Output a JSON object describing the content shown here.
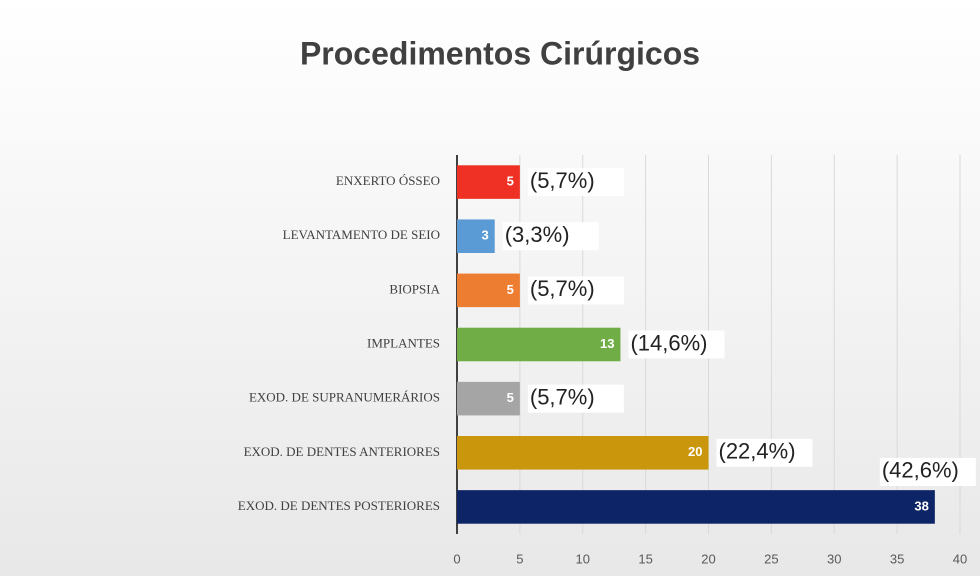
{
  "chart_data": {
    "type": "bar",
    "orientation": "horizontal",
    "title": "Procedimentos Cirúrgicos",
    "categories": [
      "ENXERTO ÓSSEO",
      "LEVANTAMENTO DE SEIO",
      "BIOPSIA",
      "IMPLANTES",
      "EXOD. DE SUPRANUMERÁRIOS",
      "EXOD. DE DENTES ANTERIORES",
      "EXOD. DE DENTES POSTERIORES"
    ],
    "values": [
      5,
      3,
      5,
      13,
      5,
      20,
      38
    ],
    "percent_labels": [
      "(5,7%)",
      "(3,3%)",
      "(5,7%)",
      "(14,6%)",
      "(5,7%)",
      "(22,4%)",
      "(42,6%)"
    ],
    "colors": [
      "#ee3124",
      "#5b9bd5",
      "#ed7d31",
      "#70ad47",
      "#a5a5a5",
      "#c9960c",
      "#0d2466"
    ],
    "xlim": [
      0,
      40
    ],
    "xticks": [
      0,
      5,
      10,
      15,
      20,
      25,
      30,
      35,
      40
    ],
    "grid": true
  }
}
